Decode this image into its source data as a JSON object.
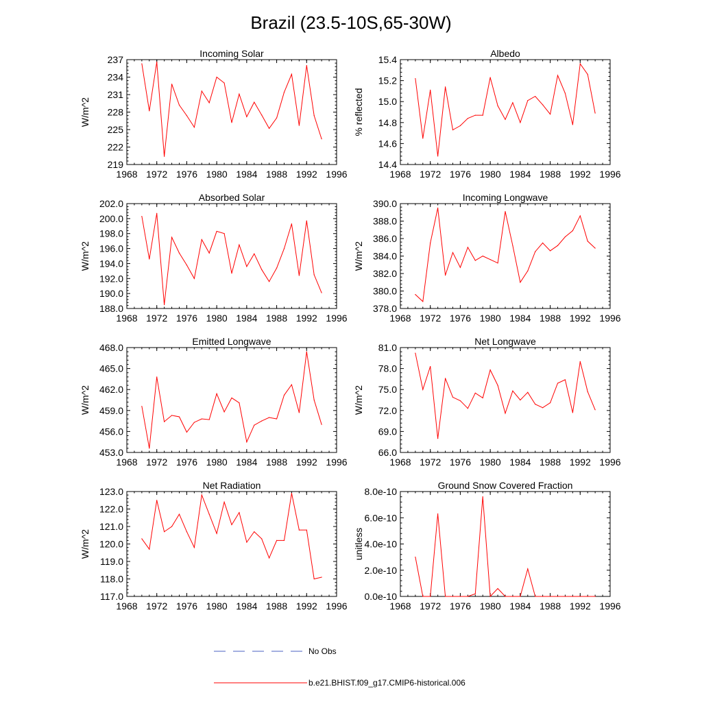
{
  "title": "Brazil (23.5-10S,65-30W)",
  "colors": {
    "series": "#ff0000",
    "obs": "#4a5fc1",
    "axis": "#000000"
  },
  "legend": [
    {
      "label": "No Obs",
      "style": "dashed",
      "color": "#4a5fc1"
    },
    {
      "label": "b.e21.BHIST.f09_g17.CMIP6-historical.006",
      "style": "solid",
      "color": "#ff0000"
    }
  ],
  "chart_data": [
    {
      "type": "line",
      "title": "Incoming Solar",
      "ylabel": "W/m^2",
      "xlim": [
        1968,
        1996
      ],
      "xticks": [
        "1968",
        "1972",
        "1976",
        "1980",
        "1984",
        "1988",
        "1992",
        "1996"
      ],
      "ylim": [
        219,
        237
      ],
      "yticks": [
        "219",
        "222",
        "225",
        "228",
        "231",
        "234",
        "237"
      ],
      "x": [
        1970,
        1971,
        1972,
        1973,
        1974,
        1975,
        1976,
        1977,
        1978,
        1979,
        1980,
        1981,
        1982,
        1983,
        1984,
        1985,
        1986,
        1987,
        1988,
        1989,
        1990,
        1991,
        1992,
        1993,
        1994
      ],
      "values": [
        236.3,
        228.2,
        236.6,
        220.4,
        232.8,
        229.2,
        227.4,
        225.4,
        231.6,
        229.6,
        234.0,
        233.0,
        226.2,
        231.1,
        227.2,
        229.7,
        227.5,
        225.2,
        227.0,
        231.4,
        234.5,
        225.7,
        236.0,
        227.4,
        223.4
      ]
    },
    {
      "type": "line",
      "title": "Albedo",
      "ylabel": "% reflected",
      "xlim": [
        1968,
        1996
      ],
      "xticks": [
        "1968",
        "1972",
        "1976",
        "1980",
        "1984",
        "1988",
        "1992",
        "1996"
      ],
      "ylim": [
        14.4,
        15.4
      ],
      "yticks": [
        "14.4",
        "14.6",
        "14.8",
        "15.0",
        "15.2",
        "15.4"
      ],
      "x": [
        1970,
        1971,
        1972,
        1973,
        1974,
        1975,
        1976,
        1977,
        1978,
        1979,
        1980,
        1981,
        1982,
        1983,
        1984,
        1985,
        1986,
        1987,
        1988,
        1989,
        1990,
        1991,
        1992,
        1993,
        1994
      ],
      "values": [
        15.22,
        14.65,
        15.11,
        14.48,
        15.14,
        14.73,
        14.77,
        14.84,
        14.87,
        14.87,
        15.23,
        14.96,
        14.83,
        14.99,
        14.8,
        15.01,
        15.05,
        14.97,
        14.88,
        15.25,
        15.08,
        14.78,
        15.36,
        15.26,
        14.89
      ]
    },
    {
      "type": "line",
      "title": "Absorbed Solar",
      "ylabel": "W/m^2",
      "xlim": [
        1968,
        1996
      ],
      "xticks": [
        "1968",
        "1972",
        "1976",
        "1980",
        "1984",
        "1988",
        "1992",
        "1996"
      ],
      "ylim": [
        188.0,
        202.0
      ],
      "yticks": [
        "188.0",
        "190.0",
        "192.0",
        "194.0",
        "196.0",
        "198.0",
        "200.0",
        "202.0"
      ],
      "x": [
        1970,
        1971,
        1972,
        1973,
        1974,
        1975,
        1976,
        1977,
        1978,
        1979,
        1980,
        1981,
        1982,
        1983,
        1984,
        1985,
        1986,
        1987,
        1988,
        1989,
        1990,
        1991,
        1992,
        1993,
        1994
      ],
      "values": [
        200.3,
        194.6,
        200.7,
        188.5,
        197.5,
        195.4,
        193.8,
        192.0,
        197.2,
        195.4,
        198.3,
        198.0,
        192.7,
        196.5,
        193.6,
        195.3,
        193.2,
        191.6,
        193.4,
        196.0,
        199.3,
        192.4,
        199.7,
        192.5,
        190.1
      ]
    },
    {
      "type": "line",
      "title": "Incoming Longwave",
      "ylabel": "W/m^2",
      "xlim": [
        1968,
        1996
      ],
      "xticks": [
        "1968",
        "1972",
        "1976",
        "1980",
        "1984",
        "1988",
        "1992",
        "1996"
      ],
      "ylim": [
        378.0,
        390.0
      ],
      "yticks": [
        "378.0",
        "380.0",
        "382.0",
        "384.0",
        "386.0",
        "388.0",
        "390.0"
      ],
      "x": [
        1970,
        1971,
        1972,
        1973,
        1974,
        1975,
        1976,
        1977,
        1978,
        1979,
        1980,
        1981,
        1982,
        1983,
        1984,
        1985,
        1986,
        1987,
        1988,
        1989,
        1990,
        1991,
        1992,
        1993,
        1994
      ],
      "values": [
        379.6,
        378.8,
        385.5,
        389.5,
        381.8,
        384.4,
        382.7,
        385.0,
        383.5,
        384.0,
        383.6,
        383.2,
        389.1,
        385.2,
        381.0,
        382.3,
        384.5,
        385.5,
        384.6,
        385.2,
        386.2,
        386.9,
        388.6,
        385.7,
        384.9
      ]
    },
    {
      "type": "line",
      "title": "Emitted Longwave",
      "ylabel": "W/m^2",
      "xlim": [
        1968,
        1996
      ],
      "xticks": [
        "1968",
        "1972",
        "1976",
        "1980",
        "1984",
        "1988",
        "1992",
        "1996"
      ],
      "ylim": [
        453.0,
        468.0
      ],
      "yticks": [
        "453.0",
        "456.0",
        "459.0",
        "462.0",
        "465.0",
        "468.0"
      ],
      "x": [
        1970,
        1971,
        1972,
        1973,
        1974,
        1975,
        1976,
        1977,
        1978,
        1979,
        1980,
        1981,
        1982,
        1983,
        1984,
        1985,
        1986,
        1987,
        1988,
        1989,
        1990,
        1991,
        1992,
        1993,
        1994
      ],
      "values": [
        459.6,
        453.6,
        463.8,
        457.4,
        458.3,
        458.1,
        455.9,
        457.3,
        457.8,
        457.7,
        461.4,
        458.8,
        460.8,
        460.1,
        454.5,
        456.9,
        457.5,
        458.0,
        457.8,
        461.2,
        462.7,
        458.7,
        467.4,
        460.5,
        457.0
      ]
    },
    {
      "type": "line",
      "title": "Net Longwave",
      "ylabel": "W/m^2",
      "xlim": [
        1968,
        1996
      ],
      "xticks": [
        "1968",
        "1972",
        "1976",
        "1980",
        "1984",
        "1988",
        "1992",
        "1996"
      ],
      "ylim": [
        66.0,
        81.0
      ],
      "yticks": [
        "66.0",
        "69.0",
        "72.0",
        "75.0",
        "78.0",
        "81.0"
      ],
      "x": [
        1970,
        1971,
        1972,
        1973,
        1974,
        1975,
        1976,
        1977,
        1978,
        1979,
        1980,
        1981,
        1982,
        1983,
        1984,
        1985,
        1986,
        1987,
        1988,
        1989,
        1990,
        1991,
        1992,
        1993,
        1994
      ],
      "values": [
        80.2,
        75.0,
        78.3,
        68.0,
        76.6,
        73.9,
        73.4,
        72.3,
        74.5,
        73.8,
        77.8,
        75.6,
        71.6,
        74.8,
        73.5,
        74.6,
        72.9,
        72.4,
        73.1,
        75.9,
        76.4,
        71.7,
        79.0,
        74.7,
        72.1
      ]
    },
    {
      "type": "line",
      "title": "Net Radiation",
      "ylabel": "W/m^2",
      "xlim": [
        1968,
        1996
      ],
      "xticks": [
        "1968",
        "1972",
        "1976",
        "1980",
        "1984",
        "1988",
        "1992",
        "1996"
      ],
      "ylim": [
        117.0,
        123.0
      ],
      "yticks": [
        "117.0",
        "118.0",
        "119.0",
        "120.0",
        "121.0",
        "122.0",
        "123.0"
      ],
      "x": [
        1970,
        1971,
        1972,
        1973,
        1974,
        1975,
        1976,
        1977,
        1978,
        1979,
        1980,
        1981,
        1982,
        1983,
        1984,
        1985,
        1986,
        1987,
        1988,
        1989,
        1990,
        1991,
        1992,
        1993,
        1994
      ],
      "values": [
        120.3,
        119.7,
        122.5,
        120.7,
        121.0,
        121.7,
        120.7,
        119.8,
        122.8,
        121.7,
        120.6,
        122.4,
        121.1,
        121.8,
        120.1,
        120.7,
        120.3,
        119.2,
        120.2,
        120.2,
        122.9,
        120.8,
        120.8,
        118.0,
        118.1
      ]
    },
    {
      "type": "line",
      "title": "Ground Snow Covered Fraction",
      "ylabel": "unitless",
      "xlim": [
        1968,
        1996
      ],
      "xticks": [
        "1968",
        "1972",
        "1976",
        "1980",
        "1984",
        "1988",
        "1992",
        "1996"
      ],
      "ylim": [
        0,
        8e-10
      ],
      "yticks": [
        "0.0e-10",
        "2.0e-10",
        "4.0e-10",
        "6.0e-10",
        "8.0e-10"
      ],
      "x": [
        1970,
        1971,
        1972,
        1973,
        1974,
        1975,
        1976,
        1977,
        1978,
        1979,
        1980,
        1981,
        1982,
        1983,
        1984,
        1985,
        1986,
        1987,
        1988,
        1989,
        1990,
        1991,
        1992,
        1993,
        1994
      ],
      "values": [
        3e-10,
        0,
        0,
        6.3e-10,
        0,
        0,
        0,
        0,
        2e-11,
        7.6e-10,
        0,
        6e-11,
        0,
        0,
        0,
        2.1e-10,
        0,
        0,
        0,
        0,
        0,
        0,
        0,
        0,
        0
      ]
    }
  ]
}
